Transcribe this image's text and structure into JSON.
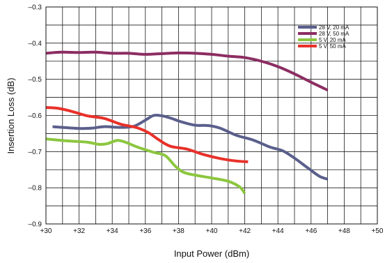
{
  "chart_data": {
    "type": "line",
    "xlabel": "Input Power (dBm)",
    "ylabel": "Insertion Loss (dB)",
    "xlim": [
      30,
      50
    ],
    "ylim": [
      -0.9,
      -0.3
    ],
    "x_tick_step": 1,
    "y_tick_step": 0.05,
    "x_tick_labels": [
      "+30",
      "+32",
      "+34",
      "+36",
      "+38",
      "+40",
      "+42",
      "+44",
      "+46",
      "+48",
      "+50"
    ],
    "y_tick_labels": [
      "–0.3",
      "–0.4",
      "–0.5",
      "–0.6",
      "–0.7",
      "–0.8",
      "–0.9"
    ],
    "grid": true,
    "legend_position": "top-right",
    "series": [
      {
        "name": "28 V, 20 mA",
        "color": "#5a5f8c",
        "x": [
          30.4,
          31,
          32,
          32.8,
          33.5,
          34.5,
          35.3,
          36,
          36.5,
          37,
          37.5,
          38.2,
          39,
          39.8,
          40.5,
          41.5,
          42.5,
          43.5,
          44.3,
          45,
          45.8,
          46.5,
          47
        ],
        "y": [
          -0.631,
          -0.633,
          -0.636,
          -0.635,
          -0.631,
          -0.633,
          -0.63,
          -0.613,
          -0.6,
          -0.601,
          -0.607,
          -0.618,
          -0.627,
          -0.628,
          -0.635,
          -0.655,
          -0.668,
          -0.687,
          -0.698,
          -0.718,
          -0.745,
          -0.768,
          -0.776
        ]
      },
      {
        "name": "28 V, 50 mA",
        "color": "#8c2d62",
        "x": [
          30,
          30.5,
          31,
          32,
          33,
          34,
          35,
          36,
          37,
          38,
          39,
          40,
          41,
          42,
          43,
          44,
          45,
          46,
          47
        ],
        "y": [
          -0.428,
          -0.426,
          -0.425,
          -0.426,
          -0.425,
          -0.428,
          -0.428,
          -0.431,
          -0.429,
          -0.427,
          -0.428,
          -0.431,
          -0.436,
          -0.44,
          -0.45,
          -0.465,
          -0.485,
          -0.508,
          -0.53
        ]
      },
      {
        "name": "5 V, 20 mA",
        "color": "#8cc63f",
        "x": [
          30,
          30.7,
          31.5,
          32.5,
          33.2,
          33.7,
          34.3,
          34.8,
          35.5,
          36.5,
          37.2,
          37.8,
          38.3,
          39,
          40,
          41,
          41.7,
          42
        ],
        "y": [
          -0.665,
          -0.668,
          -0.671,
          -0.674,
          -0.68,
          -0.678,
          -0.669,
          -0.674,
          -0.687,
          -0.702,
          -0.711,
          -0.74,
          -0.757,
          -0.765,
          -0.773,
          -0.782,
          -0.798,
          -0.816
        ]
      },
      {
        "name": "5 V, 50 mA",
        "color": "#e8312a",
        "x": [
          30,
          30.7,
          31.5,
          32.5,
          33.5,
          34.5,
          35.5,
          36.2,
          36.8,
          37.5,
          38.5,
          39.5,
          40.5,
          41.5,
          42.2
        ],
        "y": [
          -0.578,
          -0.58,
          -0.588,
          -0.601,
          -0.608,
          -0.624,
          -0.634,
          -0.648,
          -0.667,
          -0.685,
          -0.693,
          -0.708,
          -0.719,
          -0.726,
          -0.728
        ]
      }
    ]
  }
}
